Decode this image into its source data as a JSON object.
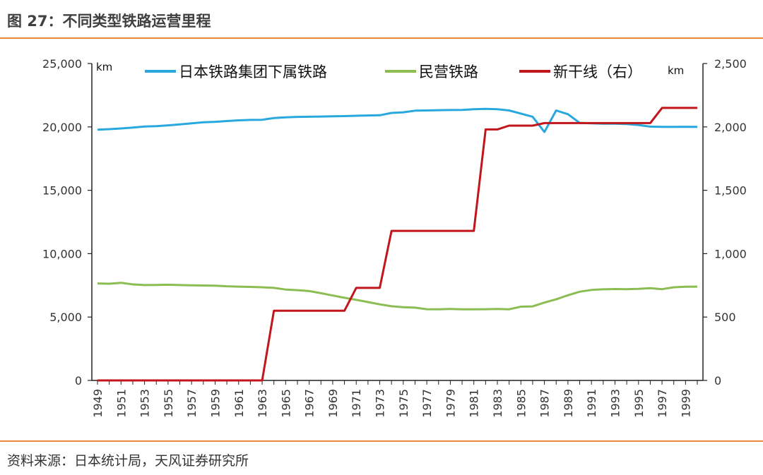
{
  "figure": {
    "title": "图 27：不同类型铁路运营里程",
    "source": "资料来源：日本统计局，天风证券研究所"
  },
  "chart_data": {
    "type": "line",
    "title": "图 27：不同类型铁路运营里程",
    "left_unit": "km",
    "right_unit": "km",
    "left_ylim": [
      0,
      25000
    ],
    "right_ylim": [
      0,
      2500
    ],
    "left_ticks": [
      "0",
      "5,000",
      "10,000",
      "15,000",
      "20,000",
      "25,000"
    ],
    "right_ticks": [
      "0",
      "500",
      "1,000",
      "1,500",
      "2,000",
      "2,500"
    ],
    "x": [
      1949,
      1950,
      1951,
      1952,
      1953,
      1954,
      1955,
      1956,
      1957,
      1958,
      1959,
      1960,
      1961,
      1962,
      1963,
      1964,
      1965,
      1966,
      1967,
      1968,
      1969,
      1970,
      1971,
      1972,
      1973,
      1974,
      1975,
      1976,
      1977,
      1978,
      1979,
      1980,
      1981,
      1982,
      1983,
      1984,
      1985,
      1986,
      1987,
      1988,
      1989,
      1990,
      1991,
      1992,
      1993,
      1994,
      1995,
      1996,
      1997,
      1998,
      1999,
      2000
    ],
    "x_tick_labels": [
      "1949",
      "1951",
      "1953",
      "1955",
      "1957",
      "1959",
      "1961",
      "1963",
      "1965",
      "1967",
      "1969",
      "1971",
      "1973",
      "1975",
      "1977",
      "1979",
      "1981",
      "1983",
      "1985",
      "1987",
      "1989",
      "1991",
      "1993",
      "1995",
      "1997",
      "1999"
    ],
    "series": [
      {
        "name": "日本铁路集团下属铁路",
        "axis": "left",
        "color": "#29a8e0",
        "values": [
          19780,
          19820,
          19880,
          19950,
          20030,
          20060,
          20120,
          20200,
          20280,
          20360,
          20400,
          20460,
          20520,
          20550,
          20560,
          20700,
          20760,
          20790,
          20800,
          20820,
          20840,
          20850,
          20880,
          20900,
          20920,
          21100,
          21150,
          21280,
          21300,
          21320,
          21330,
          21340,
          21400,
          21420,
          21400,
          21300,
          21050,
          20800,
          19600,
          21300,
          21000,
          20320,
          20280,
          20250,
          20250,
          20220,
          20150,
          20020,
          20000,
          20000,
          20010,
          20000
        ]
      },
      {
        "name": "民营铁路",
        "axis": "left",
        "color": "#8cbd52",
        "values": [
          7650,
          7630,
          7700,
          7580,
          7520,
          7530,
          7550,
          7520,
          7500,
          7490,
          7480,
          7430,
          7400,
          7380,
          7350,
          7300,
          7170,
          7120,
          7050,
          6880,
          6700,
          6520,
          6360,
          6180,
          6000,
          5850,
          5780,
          5740,
          5620,
          5610,
          5640,
          5610,
          5610,
          5620,
          5640,
          5610,
          5820,
          5840,
          6140,
          6400,
          6720,
          7000,
          7140,
          7190,
          7210,
          7200,
          7220,
          7280,
          7200,
          7350,
          7390,
          7400
        ]
      },
      {
        "name": "新干线（右）",
        "axis": "right",
        "color": "#c0161c",
        "step": true,
        "values": [
          0,
          0,
          0,
          0,
          0,
          0,
          0,
          0,
          0,
          0,
          0,
          0,
          0,
          0,
          0,
          550,
          550,
          550,
          550,
          550,
          550,
          550,
          730,
          730,
          730,
          1180,
          1180,
          1180,
          1180,
          1180,
          1180,
          1180,
          1180,
          1980,
          1980,
          2010,
          2010,
          2010,
          2030,
          2030,
          2030,
          2030,
          2030,
          2030,
          2030,
          2030,
          2030,
          2030,
          2150,
          2150,
          2150,
          2150
        ]
      }
    ],
    "legend_position": "top",
    "grid": false
  }
}
